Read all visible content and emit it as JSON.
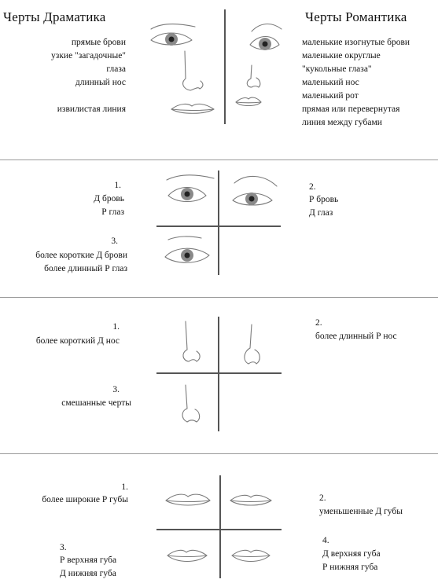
{
  "header": {
    "left_title": "Черты Драматика",
    "right_title": "Черты Романтика"
  },
  "dramatic_features": [
    "прямые брови",
    "узкие \"загадочные\"",
    "глаза",
    "длинный нос",
    "извилистая линия"
  ],
  "romantic_features": [
    "маленькие изогнутые брови",
    "маленькие округлые",
    "\"кукольные глаза\"",
    "маленький нос",
    "маленький рот",
    "прямая или перевернутая",
    "линия между губами"
  ],
  "eyes": {
    "n1": "1.",
    "n1_l1": "Д бровь",
    "n1_l2": "Р глаз",
    "n2": "2.",
    "n2_l1": "Р бровь",
    "n2_l2": "Д глаз",
    "n3": "3.",
    "n3_l1": "более короткие Д брови",
    "n3_l2": "более длинный Р глаз"
  },
  "nose": {
    "n1": "1.",
    "n1_l1": "более короткий Д нос",
    "n2": "2.",
    "n2_l1": "более длинный Р нос",
    "n3": "3.",
    "n3_l1": "смешанные черты"
  },
  "lips": {
    "n1": "1.",
    "n1_l1": "более широкие Р губы",
    "n2": "2.",
    "n2_l1": "уменьшенные Д губы",
    "n3": "3.",
    "n3_l1": "Р верхняя губа",
    "n3_l2": "Д нижняя губа",
    "n4": "4.",
    "n4_l1": "Д верхняя губа",
    "n4_l2": "Р нижняя губа"
  }
}
